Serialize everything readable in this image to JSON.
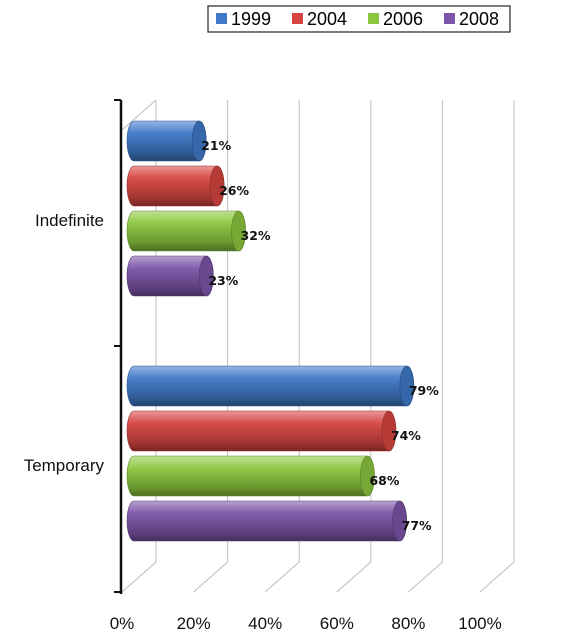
{
  "chart_data": {
    "type": "bar",
    "orientation": "horizontal",
    "style": "3d-cylinder",
    "categories": [
      "Indefinite",
      "Temporary"
    ],
    "series": [
      {
        "name": "1999",
        "values": [
          21,
          79
        ],
        "color": "#3f79c8",
        "labels": [
          "21%",
          "79%"
        ]
      },
      {
        "name": "2004",
        "values": [
          26,
          74
        ],
        "color": "#d64541",
        "labels": [
          "26%",
          "74%"
        ]
      },
      {
        "name": "2006",
        "values": [
          32,
          68
        ],
        "color": "#8cc63e",
        "labels": [
          "32%",
          "68%"
        ]
      },
      {
        "name": "2008",
        "values": [
          23,
          77
        ],
        "color": "#7c55a8",
        "labels": [
          "23%",
          "77%"
        ]
      }
    ],
    "xlim": [
      0,
      100
    ],
    "x_ticks": [
      "0%",
      "20%",
      "40%",
      "60%",
      "80%",
      "100%"
    ],
    "grid": true,
    "legend_position": "top-right"
  }
}
